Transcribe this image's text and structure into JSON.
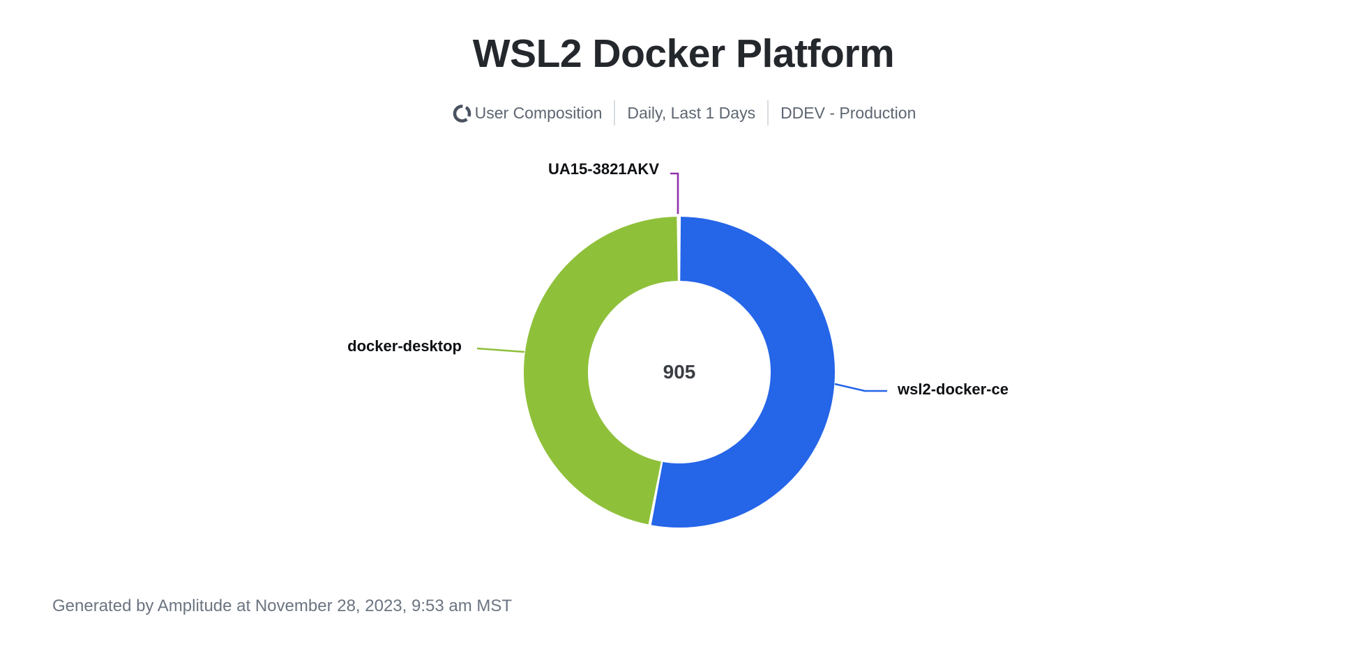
{
  "header": {
    "title": "WSL2 Docker Platform",
    "meta": {
      "chart_type_icon": "donut-chart-icon",
      "chart_type": "User Composition",
      "date_range": "Daily, Last 1 Days",
      "project": "DDEV - Production"
    }
  },
  "chart_data": {
    "type": "pie",
    "donut": true,
    "title": "WSL2 Docker Platform",
    "total": 905,
    "total_label": "905",
    "legend_position": "callout-labels",
    "segments": [
      {
        "label": "wsl2-docker-ce",
        "value": 480,
        "color": "#2565E8"
      },
      {
        "label": "docker-desktop",
        "value": 424,
        "color": "#8FC03A"
      },
      {
        "label": "UA15-3821AKV",
        "value": 1,
        "color": "#9232AC"
      }
    ]
  },
  "footer": {
    "text": "Generated by Amplitude at November 28, 2023, 9:53 am MST"
  },
  "colors": {
    "background": "#ffffff",
    "title_text": "#24272c",
    "meta_text": "#5d6571",
    "meta_icon": "#4a5260",
    "divider": "#d9dce1",
    "label_text": "#0e1013",
    "total_text": "#3a3d42",
    "footer_text": "#6b7480"
  }
}
